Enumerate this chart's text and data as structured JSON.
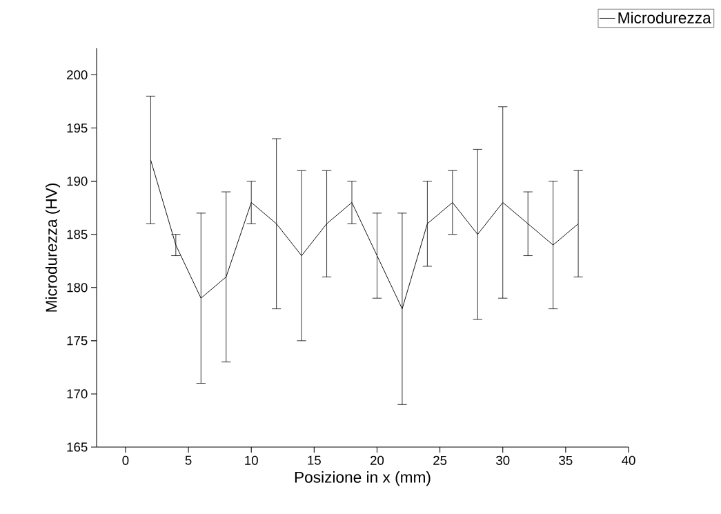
{
  "chart_data": {
    "type": "line",
    "xlabel": "Posizione in x (mm)",
    "ylabel": "Microdurezza (HV)",
    "x": [
      2,
      4,
      6,
      8,
      10,
      12,
      14,
      16,
      18,
      20,
      22,
      24,
      26,
      28,
      30,
      32,
      34,
      36
    ],
    "series": [
      {
        "name": "Microdurezza",
        "color": "#000000",
        "values": [
          192,
          184,
          179,
          181,
          188,
          186,
          183,
          186,
          188,
          183,
          178,
          186,
          188,
          185,
          188,
          186,
          184,
          186
        ],
        "errors": [
          6,
          1,
          8,
          8,
          2,
          8,
          8,
          5,
          2,
          4,
          9,
          4,
          3,
          8,
          9,
          3,
          6,
          5
        ]
      }
    ],
    "xlim": [
      -2.3,
      40
    ],
    "ylim": [
      165,
      202.5
    ],
    "xticks": [
      0,
      5,
      10,
      15,
      20,
      25,
      30,
      35,
      40
    ],
    "yticks": [
      165,
      170,
      175,
      180,
      185,
      190,
      195,
      200
    ],
    "grid": false,
    "legend": "top right",
    "marker": "none",
    "line_style": "solid"
  }
}
